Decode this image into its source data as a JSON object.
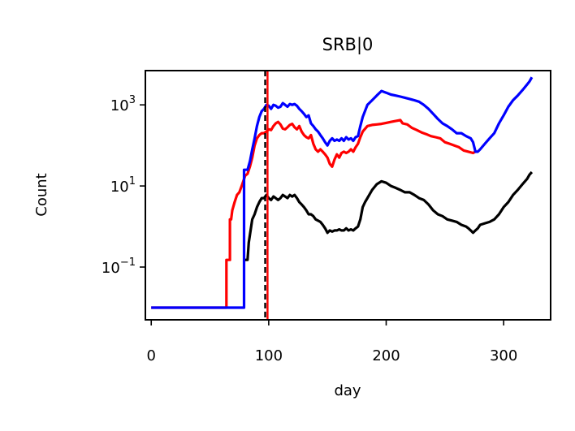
{
  "chart_data": {
    "type": "line",
    "title": "SRB|0",
    "xlabel": "day",
    "ylabel": "Count",
    "xlim": [
      -5,
      340
    ],
    "ylim": [
      0.005,
      7000
    ],
    "yscale": "log",
    "xticks": [
      {
        "value": 0,
        "label": "0"
      },
      {
        "value": 100,
        "label": "100"
      },
      {
        "value": 200,
        "label": "200"
      },
      {
        "value": 300,
        "label": "300"
      }
    ],
    "yticks": [
      {
        "value": 0.1,
        "base": "10",
        "exp": "−1"
      },
      {
        "value": 10,
        "base": "10",
        "exp": "1"
      },
      {
        "value": 1000,
        "base": "10",
        "exp": "3"
      }
    ],
    "vlines": [
      {
        "x": 97,
        "color": "#000000",
        "style": "dashed"
      },
      {
        "x": 99,
        "color": "#ff0000",
        "style": "solid"
      }
    ],
    "series": [
      {
        "color": "#ff0000",
        "points": [
          [
            0,
            0.01
          ],
          [
            64,
            0.01
          ],
          [
            64,
            0.15
          ],
          [
            66,
            0.15
          ],
          [
            67,
            0.15
          ],
          [
            67,
            1.5
          ],
          [
            68,
            1.5
          ],
          [
            69,
            2.5
          ],
          [
            71,
            4
          ],
          [
            73,
            6
          ],
          [
            75,
            7
          ],
          [
            77,
            10
          ],
          [
            80,
            18
          ],
          [
            82,
            20
          ],
          [
            84,
            30
          ],
          [
            86,
            50
          ],
          [
            88,
            100
          ],
          [
            90,
            150
          ],
          [
            92,
            180
          ],
          [
            94,
            200
          ],
          [
            96,
            200
          ],
          [
            98,
            220
          ],
          [
            100,
            250
          ],
          [
            102,
            240
          ],
          [
            104,
            300
          ],
          [
            106,
            350
          ],
          [
            108,
            380
          ],
          [
            110,
            330
          ],
          [
            112,
            260
          ],
          [
            114,
            250
          ],
          [
            116,
            280
          ],
          [
            118,
            320
          ],
          [
            120,
            340
          ],
          [
            122,
            280
          ],
          [
            124,
            250
          ],
          [
            126,
            300
          ],
          [
            128,
            220
          ],
          [
            130,
            180
          ],
          [
            132,
            160
          ],
          [
            134,
            150
          ],
          [
            136,
            180
          ],
          [
            138,
            110
          ],
          [
            140,
            80
          ],
          [
            142,
            70
          ],
          [
            144,
            80
          ],
          [
            146,
            70
          ],
          [
            148,
            60
          ],
          [
            150,
            50
          ],
          [
            152,
            35
          ],
          [
            154,
            30
          ],
          [
            156,
            45
          ],
          [
            158,
            60
          ],
          [
            160,
            50
          ],
          [
            162,
            65
          ],
          [
            164,
            70
          ],
          [
            166,
            65
          ],
          [
            168,
            70
          ],
          [
            170,
            80
          ],
          [
            172,
            70
          ],
          [
            174,
            90
          ],
          [
            176,
            110
          ],
          [
            178,
            160
          ],
          [
            180,
            220
          ],
          [
            184,
            300
          ],
          [
            188,
            320
          ],
          [
            192,
            330
          ],
          [
            196,
            340
          ],
          [
            200,
            360
          ],
          [
            204,
            380
          ],
          [
            208,
            400
          ],
          [
            212,
            420
          ],
          [
            214,
            350
          ],
          [
            218,
            330
          ],
          [
            222,
            270
          ],
          [
            226,
            240
          ],
          [
            230,
            210
          ],
          [
            234,
            190
          ],
          [
            238,
            170
          ],
          [
            242,
            160
          ],
          [
            246,
            150
          ],
          [
            250,
            120
          ],
          [
            254,
            110
          ],
          [
            258,
            100
          ],
          [
            262,
            90
          ],
          [
            266,
            75
          ],
          [
            270,
            70
          ],
          [
            274,
            65
          ],
          [
            276,
            70
          ]
        ]
      },
      {
        "color": "#0000ff",
        "points": [
          [
            0,
            0.01
          ],
          [
            79,
            0.01
          ],
          [
            79,
            25
          ],
          [
            80,
            25
          ],
          [
            82,
            25
          ],
          [
            84,
            40
          ],
          [
            86,
            80
          ],
          [
            88,
            150
          ],
          [
            90,
            300
          ],
          [
            92,
            500
          ],
          [
            94,
            700
          ],
          [
            96,
            800
          ],
          [
            98,
            1000
          ],
          [
            100,
            950
          ],
          [
            102,
            800
          ],
          [
            104,
            1000
          ],
          [
            106,
            950
          ],
          [
            108,
            850
          ],
          [
            110,
            900
          ],
          [
            112,
            1100
          ],
          [
            114,
            1000
          ],
          [
            116,
            900
          ],
          [
            118,
            1050
          ],
          [
            120,
            1000
          ],
          [
            122,
            1050
          ],
          [
            124,
            950
          ],
          [
            126,
            800
          ],
          [
            128,
            700
          ],
          [
            130,
            600
          ],
          [
            132,
            500
          ],
          [
            134,
            550
          ],
          [
            136,
            350
          ],
          [
            138,
            300
          ],
          [
            140,
            250
          ],
          [
            142,
            220
          ],
          [
            144,
            180
          ],
          [
            146,
            150
          ],
          [
            148,
            120
          ],
          [
            150,
            100
          ],
          [
            152,
            130
          ],
          [
            154,
            150
          ],
          [
            156,
            130
          ],
          [
            158,
            140
          ],
          [
            160,
            130
          ],
          [
            162,
            150
          ],
          [
            164,
            130
          ],
          [
            166,
            160
          ],
          [
            168,
            140
          ],
          [
            170,
            150
          ],
          [
            172,
            130
          ],
          [
            174,
            160
          ],
          [
            176,
            170
          ],
          [
            178,
            300
          ],
          [
            180,
            500
          ],
          [
            184,
            1000
          ],
          [
            188,
            1300
          ],
          [
            192,
            1700
          ],
          [
            196,
            2200
          ],
          [
            200,
            2000
          ],
          [
            204,
            1800
          ],
          [
            208,
            1700
          ],
          [
            212,
            1600
          ],
          [
            216,
            1500
          ],
          [
            220,
            1400
          ],
          [
            224,
            1300
          ],
          [
            228,
            1200
          ],
          [
            232,
            1000
          ],
          [
            236,
            800
          ],
          [
            240,
            600
          ],
          [
            244,
            450
          ],
          [
            248,
            350
          ],
          [
            252,
            300
          ],
          [
            256,
            250
          ],
          [
            260,
            200
          ],
          [
            264,
            200
          ],
          [
            268,
            170
          ],
          [
            272,
            150
          ],
          [
            274,
            120
          ],
          [
            276,
            70
          ],
          [
            278,
            70
          ],
          [
            280,
            80
          ],
          [
            284,
            110
          ],
          [
            288,
            150
          ],
          [
            292,
            200
          ],
          [
            296,
            350
          ],
          [
            300,
            550
          ],
          [
            304,
            900
          ],
          [
            308,
            1300
          ],
          [
            312,
            1700
          ],
          [
            316,
            2300
          ],
          [
            320,
            3200
          ],
          [
            322,
            3800
          ],
          [
            324,
            4800
          ]
        ]
      },
      {
        "color": "#000000",
        "points": [
          [
            80,
            0.15
          ],
          [
            82,
            0.15
          ],
          [
            83,
            0.4
          ],
          [
            86,
            1.5
          ],
          [
            88,
            2
          ],
          [
            90,
            3
          ],
          [
            92,
            4
          ],
          [
            94,
            5
          ],
          [
            96,
            5
          ],
          [
            98,
            6
          ],
          [
            100,
            5
          ],
          [
            102,
            4.5
          ],
          [
            104,
            5.5
          ],
          [
            106,
            5
          ],
          [
            108,
            4.5
          ],
          [
            110,
            5
          ],
          [
            112,
            6
          ],
          [
            114,
            5.5
          ],
          [
            116,
            5
          ],
          [
            118,
            6
          ],
          [
            120,
            5.5
          ],
          [
            122,
            6
          ],
          [
            124,
            5
          ],
          [
            126,
            4
          ],
          [
            128,
            3.5
          ],
          [
            130,
            3
          ],
          [
            132,
            2.5
          ],
          [
            134,
            2
          ],
          [
            136,
            2
          ],
          [
            138,
            1.8
          ],
          [
            140,
            1.5
          ],
          [
            142,
            1.4
          ],
          [
            144,
            1.3
          ],
          [
            146,
            1.1
          ],
          [
            148,
            0.9
          ],
          [
            150,
            0.7
          ],
          [
            152,
            0.8
          ],
          [
            154,
            0.75
          ],
          [
            156,
            0.8
          ],
          [
            158,
            0.8
          ],
          [
            160,
            0.85
          ],
          [
            162,
            0.8
          ],
          [
            164,
            0.8
          ],
          [
            166,
            0.9
          ],
          [
            168,
            0.8
          ],
          [
            170,
            0.85
          ],
          [
            172,
            0.8
          ],
          [
            174,
            0.9
          ],
          [
            176,
            1
          ],
          [
            178,
            1.5
          ],
          [
            180,
            3
          ],
          [
            182,
            4
          ],
          [
            184,
            5
          ],
          [
            188,
            8
          ],
          [
            192,
            11
          ],
          [
            196,
            13
          ],
          [
            200,
            12
          ],
          [
            204,
            10
          ],
          [
            208,
            9
          ],
          [
            212,
            8
          ],
          [
            216,
            7
          ],
          [
            220,
            7
          ],
          [
            224,
            6
          ],
          [
            228,
            5
          ],
          [
            232,
            4.5
          ],
          [
            236,
            3.5
          ],
          [
            240,
            2.5
          ],
          [
            244,
            2
          ],
          [
            248,
            1.8
          ],
          [
            252,
            1.5
          ],
          [
            256,
            1.4
          ],
          [
            260,
            1.3
          ],
          [
            264,
            1.1
          ],
          [
            268,
            1
          ],
          [
            270,
            0.9
          ],
          [
            272,
            0.8
          ],
          [
            274,
            0.7
          ],
          [
            276,
            0.8
          ],
          [
            278,
            0.9
          ],
          [
            280,
            1.1
          ],
          [
            284,
            1.2
          ],
          [
            288,
            1.3
          ],
          [
            292,
            1.5
          ],
          [
            296,
            2
          ],
          [
            300,
            3
          ],
          [
            304,
            4
          ],
          [
            308,
            6
          ],
          [
            312,
            8
          ],
          [
            316,
            11
          ],
          [
            320,
            15
          ],
          [
            322,
            19
          ],
          [
            324,
            22
          ]
        ]
      }
    ]
  }
}
